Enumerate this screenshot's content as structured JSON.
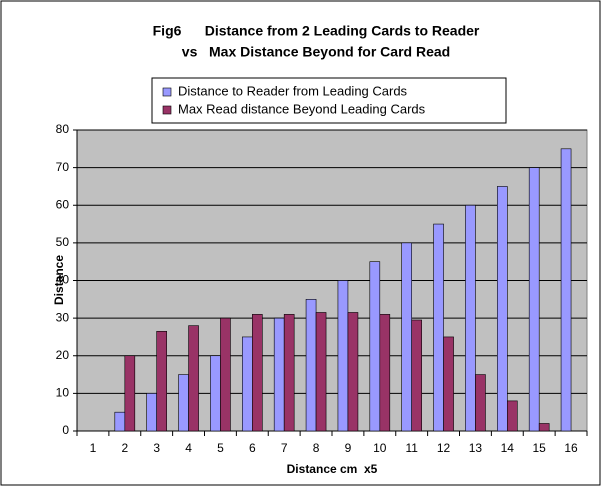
{
  "chart_data": {
    "type": "bar",
    "title": [
      "Fig6      Distance from 2 Leading Cards to Reader",
      "vs   Max Distance Beyond for Card Read"
    ],
    "x_label": "Distance cm  x5",
    "y_label": "Distance",
    "categories": [
      1,
      2,
      3,
      4,
      5,
      6,
      7,
      8,
      9,
      10,
      11,
      12,
      13,
      14,
      15,
      16
    ],
    "series": [
      {
        "name": "Distance to Reader from Leading Cards",
        "color": "#9999ff",
        "values": [
          null,
          5,
          10,
          15,
          20,
          25,
          30,
          35,
          40,
          45,
          50,
          55,
          60,
          65,
          70,
          75
        ]
      },
      {
        "name": "Max Read distance Beyond Leading Cards",
        "color": "#993366",
        "values": [
          null,
          20,
          26.5,
          28,
          30,
          31,
          31,
          31.5,
          31.5,
          31,
          29.5,
          25,
          15,
          8,
          2,
          null
        ]
      }
    ],
    "ylim": [
      0,
      80
    ],
    "yticks": [
      0,
      10,
      20,
      30,
      40,
      50,
      60,
      70,
      80
    ],
    "grid": true,
    "legend": "top",
    "plot_background": "#c0c0c0"
  }
}
